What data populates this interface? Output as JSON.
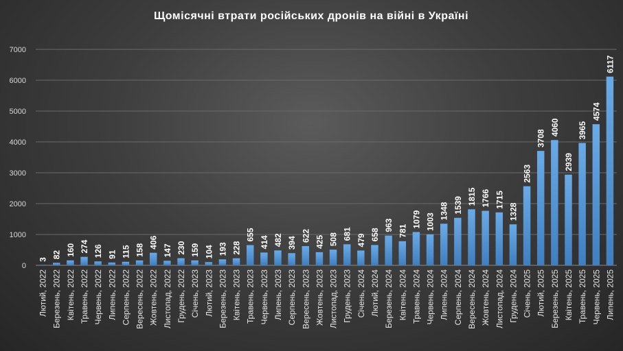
{
  "chart_data": {
    "type": "bar",
    "title": "Щомісячні втрати російських дронів на війні в Україні",
    "xlabel": "",
    "ylabel": "",
    "ylim": [
      0,
      7000
    ],
    "yticks": [
      0,
      1000,
      2000,
      3000,
      4000,
      5000,
      6000,
      7000
    ],
    "grid": true,
    "bar_color": "#5b9bd5",
    "categories": [
      "Лютий, 2022",
      "Березень, 2022",
      "Квітень, 2022",
      "Травень, 2022",
      "Червень, 2022",
      "Липень, 2022",
      "Серпень, 2022",
      "Вересень, 2022",
      "Жовтень, 2022",
      "Листопад, 2022",
      "Грудень, 2022",
      "Січень, 2023",
      "Лютий, 2023",
      "Березень, 2023",
      "Квітень, 2023",
      "Травень, 2023",
      "Червень, 2023",
      "Липень, 2023",
      "Серпень, 2023",
      "Вересень, 2023",
      "Жовтень, 2023",
      "Листопад, 2023",
      "Грудень, 2023",
      "Січень, 2024",
      "Лютий, 2024",
      "Березень, 2024",
      "Квітень, 2024",
      "Травень, 2024",
      "Червень, 2024",
      "Липень, 2024",
      "Серпень, 2024",
      "Вересень, 2024",
      "Жовтень, 2024",
      "Листопад, 2024",
      "Грудень, 2024",
      "Січень, 2025",
      "Лютий, 2025",
      "Березень, 2025",
      "Квітень, 2025",
      "Травень, 2025",
      "Червень, 2025",
      "Липень, 2025"
    ],
    "values": [
      3,
      82,
      160,
      274,
      126,
      91,
      115,
      158,
      406,
      147,
      230,
      159,
      104,
      193,
      228,
      655,
      414,
      482,
      394,
      622,
      425,
      508,
      681,
      479,
      658,
      963,
      781,
      1079,
      1003,
      1348,
      1539,
      1815,
      1766,
      1715,
      1328,
      2563,
      3708,
      4060,
      2939,
      3965,
      4574,
      6117
    ]
  }
}
